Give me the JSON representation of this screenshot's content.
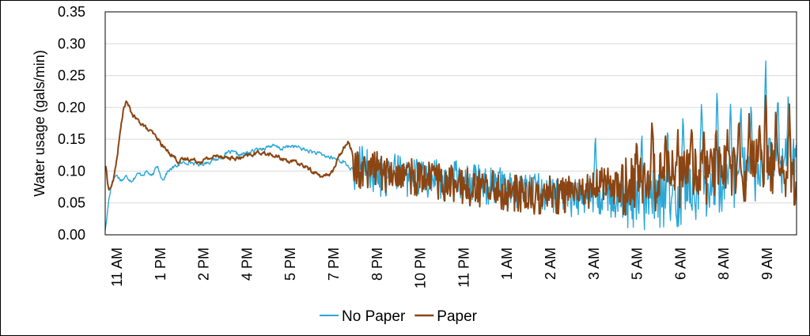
{
  "chart_data": {
    "type": "line",
    "title": "",
    "xlabel": "",
    "ylabel": "Water usage (gals/min)",
    "ylim": [
      0,
      0.35
    ],
    "yticks": [
      "0.00",
      "0.05",
      "0.10",
      "0.15",
      "0.20",
      "0.25",
      "0.30",
      "0.35"
    ],
    "xtick_labels": [
      "11 AM",
      "1 PM",
      "2 PM",
      "4 PM",
      "5 PM",
      "7 PM",
      "8 PM",
      "10 PM",
      "11 PM",
      "1 AM",
      "2 AM",
      "3 AM",
      "5 AM",
      "6 AM",
      "8 AM",
      "9 AM"
    ],
    "grid": true,
    "legend": "bottom",
    "series": [
      {
        "name": "No Paper",
        "color": "#2aa7d8",
        "points": [
          [
            0,
            0.01
          ],
          [
            0.3,
            0.06
          ],
          [
            0.6,
            0.085
          ],
          [
            1.0,
            0.095
          ],
          [
            1.5,
            0.085
          ],
          [
            2.0,
            0.092
          ],
          [
            2.5,
            0.085
          ],
          [
            3.0,
            0.095
          ],
          [
            3.5,
            0.095
          ],
          [
            4.0,
            0.1
          ],
          [
            4.5,
            0.09
          ],
          [
            5.0,
            0.11
          ],
          [
            5.5,
            0.085
          ],
          [
            6.0,
            0.1
          ],
          [
            6.5,
            0.105
          ],
          [
            7.0,
            0.11
          ],
          [
            8.0,
            0.115
          ],
          [
            9.0,
            0.11
          ],
          [
            10.0,
            0.115
          ],
          [
            11.0,
            0.12
          ],
          [
            12.0,
            0.13
          ],
          [
            13.0,
            0.125
          ],
          [
            14.0,
            0.13
          ],
          [
            15.0,
            0.135
          ],
          [
            16.0,
            0.14
          ],
          [
            17.0,
            0.135
          ],
          [
            18.0,
            0.14
          ],
          [
            19.0,
            0.135
          ],
          [
            20.0,
            0.13
          ],
          [
            21.0,
            0.125
          ],
          [
            22.0,
            0.12
          ],
          [
            23.0,
            0.115
          ],
          [
            24.0,
            0.1
          ],
          [
            25.0,
            0.12
          ],
          [
            26.0,
            0.1
          ],
          [
            27.0,
            0.09
          ],
          [
            28.0,
            0.11
          ],
          [
            29.0,
            0.09
          ],
          [
            30.0,
            0.1
          ],
          [
            31.0,
            0.09
          ],
          [
            32.0,
            0.095
          ],
          [
            33.0,
            0.085
          ],
          [
            34.0,
            0.095
          ],
          [
            35.0,
            0.085
          ],
          [
            36.0,
            0.09
          ],
          [
            37.0,
            0.08
          ],
          [
            38.0,
            0.085
          ],
          [
            39.0,
            0.075
          ],
          [
            40.0,
            0.075
          ],
          [
            41.0,
            0.07
          ],
          [
            42.0,
            0.075
          ],
          [
            43.0,
            0.07
          ],
          [
            44.0,
            0.065
          ],
          [
            45.0,
            0.06
          ],
          [
            46.0,
            0.065
          ],
          [
            47.0,
            0.07
          ],
          [
            48.0,
            0.065
          ],
          [
            49.0,
            0.06
          ],
          [
            50.0,
            0.06
          ],
          [
            51.0,
            0.065
          ],
          [
            52.0,
            0.06
          ],
          [
            53.0,
            0.06
          ],
          [
            54.0,
            0.065
          ],
          [
            55.0,
            0.06
          ],
          [
            56.0,
            0.07
          ],
          [
            57.0,
            0.075
          ],
          [
            58.0,
            0.08
          ],
          [
            59.0,
            0.085
          ],
          [
            60.0,
            0.09
          ],
          [
            61.0,
            0.095
          ],
          [
            62.0,
            0.1
          ],
          [
            63.0,
            0.105
          ],
          [
            64.0,
            0.11
          ],
          [
            65.0,
            0.115
          ],
          [
            66.0,
            0.12
          ],
          [
            67.0,
            0.12
          ]
        ],
        "spikes": [
          [
            47.5,
            0.165
          ],
          [
            52.0,
            0.165
          ],
          [
            54.5,
            0.175
          ],
          [
            56.0,
            0.2
          ],
          [
            57.8,
            0.22
          ],
          [
            59.3,
            0.235
          ],
          [
            60.6,
            0.205
          ],
          [
            61.6,
            0.215
          ],
          [
            62.6,
            0.21
          ],
          [
            64.0,
            0.29
          ],
          [
            65.2,
            0.225
          ],
          [
            66.2,
            0.235
          ]
        ]
      },
      {
        "name": "Paper",
        "color": "#8b4513",
        "points": [
          [
            0,
            0.11
          ],
          [
            0.3,
            0.065
          ],
          [
            0.8,
            0.09
          ],
          [
            1.3,
            0.15
          ],
          [
            1.7,
            0.2
          ],
          [
            2.0,
            0.21
          ],
          [
            2.5,
            0.19
          ],
          [
            3.0,
            0.18
          ],
          [
            3.5,
            0.175
          ],
          [
            4.0,
            0.165
          ],
          [
            4.5,
            0.16
          ],
          [
            5.0,
            0.15
          ],
          [
            5.5,
            0.14
          ],
          [
            6.0,
            0.13
          ],
          [
            6.5,
            0.125
          ],
          [
            7.0,
            0.115
          ],
          [
            8.0,
            0.12
          ],
          [
            9.0,
            0.115
          ],
          [
            10.0,
            0.12
          ],
          [
            11.0,
            0.125
          ],
          [
            12.0,
            0.12
          ],
          [
            13.0,
            0.12
          ],
          [
            14.0,
            0.125
          ],
          [
            15.0,
            0.13
          ],
          [
            16.0,
            0.125
          ],
          [
            17.0,
            0.12
          ],
          [
            18.0,
            0.115
          ],
          [
            19.0,
            0.11
          ],
          [
            20.0,
            0.1
          ],
          [
            21.0,
            0.09
          ],
          [
            22.0,
            0.1
          ],
          [
            22.8,
            0.13
          ],
          [
            23.5,
            0.15
          ],
          [
            24.0,
            0.12
          ],
          [
            25.0,
            0.1
          ],
          [
            26.0,
            0.115
          ],
          [
            27.0,
            0.1
          ],
          [
            28.0,
            0.095
          ],
          [
            29.0,
            0.1
          ],
          [
            30.0,
            0.095
          ],
          [
            31.0,
            0.09
          ],
          [
            32.0,
            0.09
          ],
          [
            33.0,
            0.085
          ],
          [
            34.0,
            0.085
          ],
          [
            35.0,
            0.08
          ],
          [
            36.0,
            0.075
          ],
          [
            37.0,
            0.08
          ],
          [
            38.0,
            0.075
          ],
          [
            39.0,
            0.07
          ],
          [
            40.0,
            0.07
          ],
          [
            41.0,
            0.065
          ],
          [
            42.0,
            0.065
          ],
          [
            43.0,
            0.07
          ],
          [
            44.0,
            0.065
          ],
          [
            45.0,
            0.07
          ],
          [
            46.0,
            0.07
          ],
          [
            47.0,
            0.075
          ],
          [
            48.0,
            0.08
          ],
          [
            49.0,
            0.08
          ],
          [
            50.0,
            0.085
          ],
          [
            51.0,
            0.08
          ],
          [
            52.0,
            0.09
          ],
          [
            53.0,
            0.09
          ],
          [
            54.0,
            0.09
          ],
          [
            55.0,
            0.095
          ],
          [
            56.0,
            0.095
          ],
          [
            57.0,
            0.1
          ],
          [
            58.0,
            0.1
          ],
          [
            59.0,
            0.1
          ],
          [
            60.0,
            0.1
          ],
          [
            61.0,
            0.1
          ],
          [
            62.0,
            0.105
          ],
          [
            63.0,
            0.11
          ],
          [
            64.0,
            0.115
          ],
          [
            65.0,
            0.1
          ],
          [
            66.0,
            0.09
          ],
          [
            67.0,
            0.08
          ]
        ],
        "spikes": [
          [
            51.5,
            0.155
          ],
          [
            53.0,
            0.19
          ],
          [
            54.3,
            0.155
          ],
          [
            55.5,
            0.165
          ],
          [
            56.8,
            0.175
          ],
          [
            58.0,
            0.165
          ],
          [
            59.2,
            0.175
          ],
          [
            60.3,
            0.165
          ],
          [
            61.4,
            0.185
          ],
          [
            62.4,
            0.19
          ],
          [
            63.4,
            0.185
          ],
          [
            64.0,
            0.23
          ],
          [
            65.0,
            0.2
          ],
          [
            66.3,
            0.205
          ]
        ]
      }
    ]
  }
}
